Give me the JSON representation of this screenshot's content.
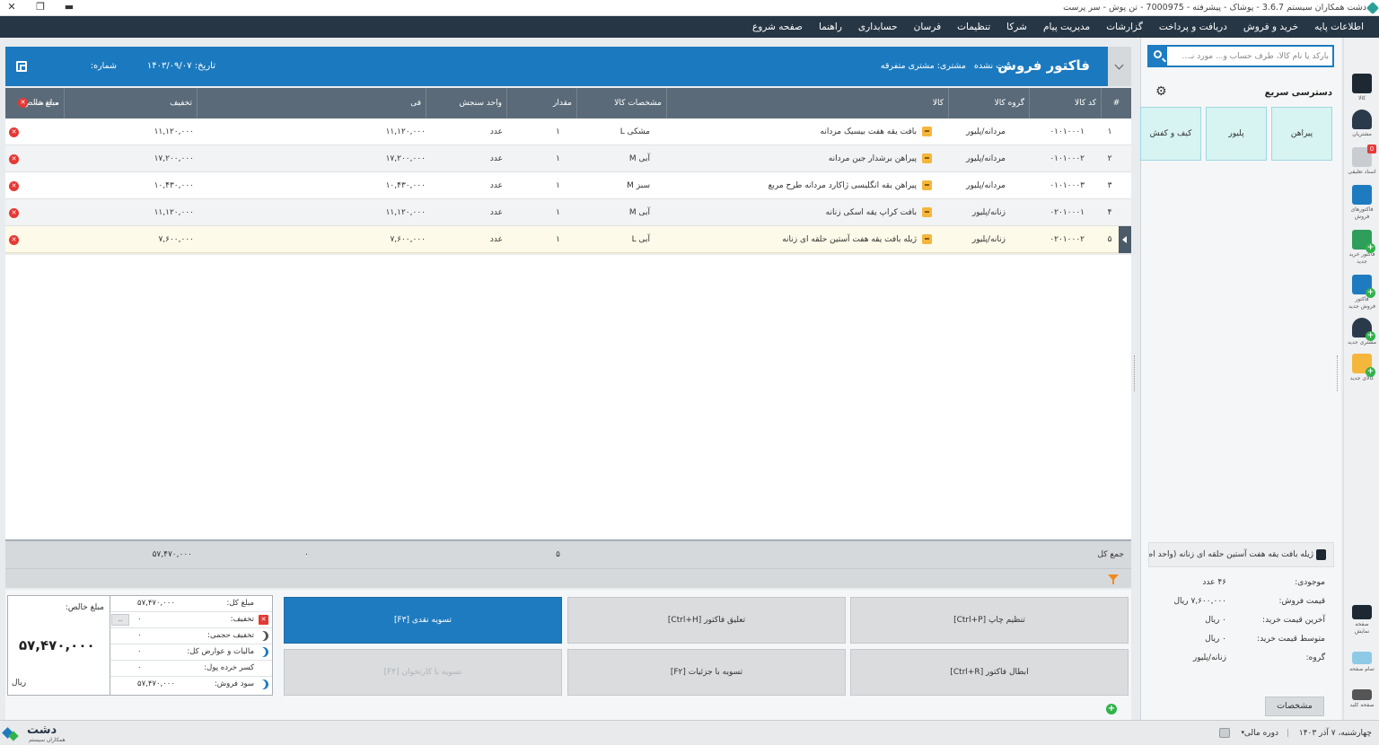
{
  "window": {
    "title": "دشت همکاران سیستم 3.6.7 - پوشاک - پیشرفته - 7000975 - تن پوش - سر پرست",
    "controls": {
      "close": "✕",
      "restore": "❐",
      "minimize": "▬"
    }
  },
  "menu": [
    "اطلاعات پایه",
    "خرید و فروش",
    "دریافت و پرداخت",
    "گزارشات",
    "مدیریت پیام",
    "شرکا",
    "تنظیمات",
    "فرسان",
    "حسابداری",
    "راهنما",
    "صفحه شروع"
  ],
  "iconbar": [
    {
      "label": "کالا",
      "icon": "product-icon"
    },
    {
      "label": "مشتریان",
      "icon": "customers-icon"
    },
    {
      "label": "اسناد تعلیقی",
      "icon": "suspended-docs-icon",
      "badge": "0"
    },
    {
      "label": "فاکتورهای فروش",
      "icon": "sales-invoices-icon"
    },
    {
      "label": "فاکتور خرید جدید",
      "icon": "new-purchase-invoice-icon"
    },
    {
      "label": "فاکتور فروش جدید",
      "icon": "new-sales-invoice-icon"
    },
    {
      "label": "مشتری جدید",
      "icon": "new-customer-icon"
    },
    {
      "label": "کالای جدید",
      "icon": "new-product-icon"
    },
    {
      "label": "صفحه نمایش",
      "icon": "display-icon"
    },
    {
      "label": "تمام صفحه",
      "icon": "fullscreen-icon"
    },
    {
      "label": "صفحه کلید",
      "icon": "keyboard-icon"
    }
  ],
  "side": {
    "search_placeholder": "بارکد یا نام کالا، طرف حساب و... مورد نـ...",
    "quick_access_title": "دسترسی سریع",
    "tiles": [
      "پیراهن",
      "پلیور",
      "کیف و کفش"
    ],
    "selected_item": "ژیله بافت یقه هفت آستین حلقه ای زنانه (واحد اصلی)",
    "details": [
      {
        "k": "موجودی:",
        "v": "۴۶ عدد"
      },
      {
        "k": "قیمت فروش:",
        "v": "۷,۶۰۰,۰۰۰ ریال"
      },
      {
        "k": "آخرین قیمت خرید:",
        "v": "۰ ریال"
      },
      {
        "k": "متوسط قیمت خرید:",
        "v": "۰ ریال"
      },
      {
        "k": "گروه:",
        "v": "زنانه/پلیور"
      }
    ],
    "spec_button": "مشخصات"
  },
  "invoice": {
    "title": "فاکتور فروش",
    "status": "ثبت نشده",
    "customer": "مشتری: مشتری متفرقه",
    "date": "تاریخ: ۱۴۰۳/۰۹/۰۷",
    "number": "شماره:"
  },
  "table": {
    "headers": {
      "index": "#",
      "code": "کد کالا",
      "group": "گروه کالا",
      "name": "کالا",
      "spec": "مشخصات کالا",
      "qty": "مقدار",
      "unit": "واحد سنجش",
      "price": "فی",
      "discount": "تخفیف",
      "net": "مبلغ خالص",
      "delete_all": "حذف همه"
    },
    "rows": [
      {
        "idx": "۱",
        "code": "۰۱۰۱۰۰۰۱",
        "group": "مردانه/پلیور",
        "name": "بافت یقه هفت بیسیک مردانه",
        "spec": "مشکی L",
        "qty": "۱",
        "unit": "عدد",
        "price": "۱۱,۱۲۰,۰۰۰",
        "discount": "",
        "net": "۱۱,۱۲۰,۰۰۰"
      },
      {
        "idx": "۲",
        "code": "۰۱۰۱۰۰۰۲",
        "group": "مردانه/پلیور",
        "name": "پیراهن برشدار جین مردانه",
        "spec": "آبی M",
        "qty": "۱",
        "unit": "عدد",
        "price": "۱۷,۲۰۰,۰۰۰",
        "discount": "",
        "net": "۱۷,۲۰۰,۰۰۰"
      },
      {
        "idx": "۳",
        "code": "۰۱۰۱۰۰۰۳",
        "group": "مردانه/پلیور",
        "name": "پیراهن یقه انگلیسی ژاکارد مردانه طرح مربع",
        "spec": "سبز M",
        "qty": "۱",
        "unit": "عدد",
        "price": "۱۰,۴۳۰,۰۰۰",
        "discount": "",
        "net": "۱۰,۴۳۰,۰۰۰"
      },
      {
        "idx": "۴",
        "code": "۰۲۰۱۰۰۰۱",
        "group": "زنانه/پلیور",
        "name": "بافت کراپ یقه اسکی زنانه",
        "spec": "آبی M",
        "qty": "۱",
        "unit": "عدد",
        "price": "۱۱,۱۲۰,۰۰۰",
        "discount": "",
        "net": "۱۱,۱۲۰,۰۰۰"
      },
      {
        "idx": "۵",
        "code": "۰۲۰۱۰۰۰۲",
        "group": "زنانه/پلیور",
        "name": "ژیله بافت یقه هفت آستین حلقه ای زنانه",
        "spec": "آبی L",
        "qty": "۱",
        "unit": "عدد",
        "price": "۷,۶۰۰,۰۰۰",
        "discount": "",
        "net": "۷,۶۰۰,۰۰۰"
      }
    ],
    "totals": {
      "label": "جمع کل",
      "qty": "۵",
      "discount": "۰",
      "net": "۵۷,۴۷۰,۰۰۰"
    }
  },
  "actions": {
    "cash": "تسویه نقدی [F۳]",
    "suspend": "تعلیق فاکتور [Ctrl+H]",
    "print_setup": "تنظیم چاپ [Ctrl+P]",
    "card": "تسویه با کارتخوان [F۴]",
    "detail_settle": "تسویه با جزئیات [F۲]",
    "cancel": "ابطال فاکتور [Ctrl+R]"
  },
  "summary": {
    "net_label": "مبلغ خالص:",
    "net_value": "۵۷,۴۷۰,۰۰۰",
    "currency": "ریال",
    "rows": [
      {
        "k": "مبلغ کل:",
        "v": "۵۷,۴۷۰,۰۰۰",
        "mark": ""
      },
      {
        "k": "تخفیف:",
        "v": "۰",
        "mark": "x"
      },
      {
        "k": "تخفیف حجمی:",
        "v": "۰",
        "mark": "moon-gray"
      },
      {
        "k": "مالیات و عوارض کل:",
        "v": "۰",
        "mark": "moon"
      },
      {
        "k": "کسر خرده پول:",
        "v": "۰",
        "mark": ""
      },
      {
        "k": "سود فروش:",
        "v": "۵۷,۴۷۰,۰۰۰",
        "mark": "moon"
      }
    ],
    "more_button": ".."
  },
  "status": {
    "date": "چهارشنبه، ۷ آذر ۱۴۰۳",
    "fiscal": "دوره مالی",
    "logo_name": "دشت",
    "logo_sub": "همکاران سیستم"
  }
}
